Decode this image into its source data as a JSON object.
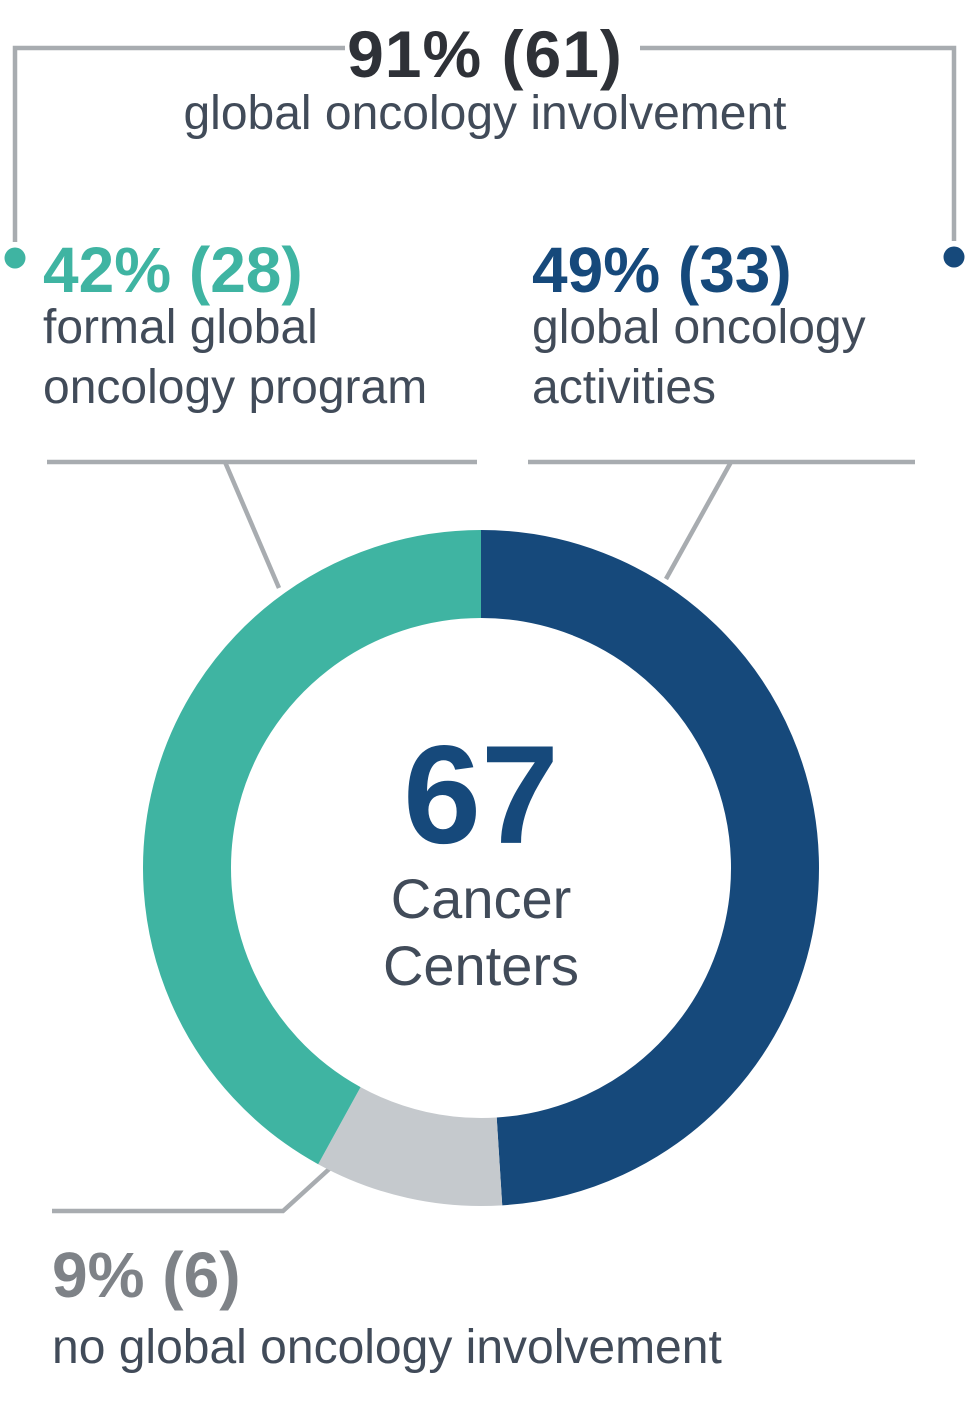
{
  "infographic": {
    "top": {
      "value": "91% (61)",
      "label": "global oncology involvement"
    },
    "left": {
      "value": "42% (28)",
      "label1": "formal global",
      "label2": "oncology program"
    },
    "right": {
      "value": "49% (33)",
      "label1": "global oncology",
      "label2": "activities"
    },
    "bottom": {
      "value": "9% (6)",
      "label": "no global oncology involvement"
    },
    "center": {
      "value": "67",
      "label1": "Cancer",
      "label2": "Centers"
    }
  },
  "colors": {
    "teal": "#3FB4A2",
    "navy": "#16497B",
    "slice_gray": "#C5C9CD",
    "title_charcoal": "#2E3137",
    "body_slate": "#414B59",
    "muted_gray": "#7E8287",
    "leader_line": "#A8ACB0",
    "background": "#FFFFFF"
  },
  "chart_data": {
    "type": "pie",
    "subtype": "donut",
    "direction": "clockwise",
    "start_angle_deg": 0,
    "inner_radius_ratio": 0.74,
    "center_value": 67,
    "center_label": "Cancer Centers",
    "series": [
      {
        "name": "global oncology activities",
        "percent": 49,
        "count": 33,
        "color": "#16497B"
      },
      {
        "name": "no global oncology involvement",
        "percent": 9,
        "count": 6,
        "color": "#C5C9CD"
      },
      {
        "name": "formal global oncology program",
        "percent": 42,
        "count": 28,
        "color": "#3FB4A2"
      }
    ],
    "aggregate": {
      "label": "global oncology involvement",
      "percent": 91,
      "count": 61
    }
  }
}
